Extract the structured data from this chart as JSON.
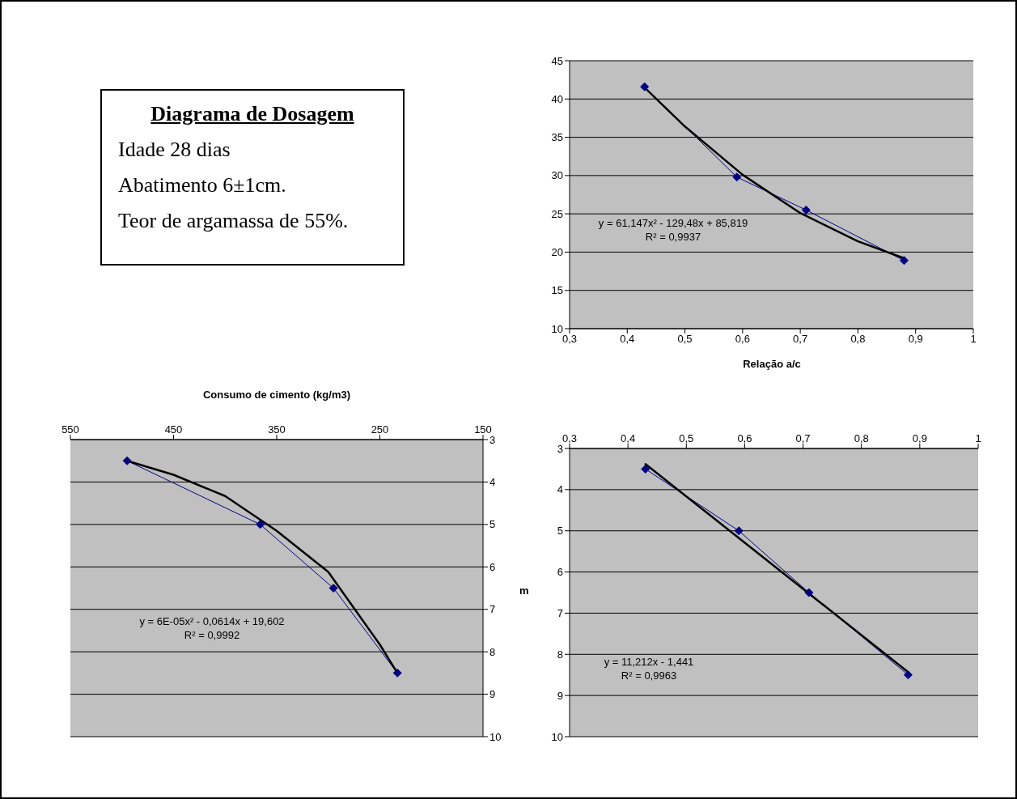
{
  "chart_data": [
    {
      "type": "other",
      "title": "Diagrama de Dosagem",
      "annotations": [
        "Idade 28 dias",
        "Abatimento 6±1cm.",
        "Teor de argamassa de 55%."
      ]
    },
    {
      "type": "line",
      "xlabel": "Relação a/c",
      "xlim": [
        0.3,
        1
      ],
      "xticks": [
        {
          "value": 0.3,
          "label": "0,3"
        },
        {
          "value": 0.4,
          "label": "0,4"
        },
        {
          "value": 0.5,
          "label": "0,5"
        },
        {
          "value": 0.6,
          "label": "0,6"
        },
        {
          "value": 0.7,
          "label": "0,7"
        },
        {
          "value": 0.8,
          "label": "0,8"
        },
        {
          "value": 0.9,
          "label": "0,9"
        },
        1
      ],
      "ylim": [
        10,
        45
      ],
      "yticks": [
        10,
        15,
        20,
        25,
        30,
        35,
        40,
        45
      ],
      "grid": "y",
      "marker": "diamond",
      "x": [
        0.43,
        0.59,
        0.71,
        0.88
      ],
      "series": [
        {
          "color": "#000080",
          "values": [
            41.6,
            29.8,
            25.5,
            18.9
          ]
        },
        {
          "type": "line",
          "marker": "none",
          "color": "#000000",
          "x": [
            0.43,
            0.5,
            0.6,
            0.7,
            0.8,
            0.88
          ],
          "values": [
            41.5,
            36.4,
            30.1,
            25.1,
            21.4,
            19.2
          ]
        }
      ],
      "annotations": [
        "y = 61,147x² - 129,48x + 85,819",
        "R² = 0,9937"
      ]
    },
    {
      "type": "line",
      "xlabel": "Consumo de cimento (kg/m3)",
      "xlim": [
        550,
        150
      ],
      "xticks": [
        550,
        450,
        350,
        250,
        150
      ],
      "ylim": [
        10,
        3
      ],
      "yticks": [
        3,
        4,
        5,
        6,
        7,
        8,
        9,
        10
      ],
      "grid": "y",
      "marker": "diamond",
      "x": [
        495,
        366,
        295,
        233
      ],
      "series": [
        {
          "color": "#000080",
          "values": [
            3.5,
            5,
            6.5,
            8.5
          ]
        },
        {
          "type": "line",
          "marker": "none",
          "color": "#000000",
          "x": [
            495,
            450,
            400,
            350,
            300,
            250,
            233
          ],
          "values": [
            3.5,
            3.83,
            4.33,
            5.15,
            6.12,
            7.83,
            8.5
          ]
        }
      ],
      "annotations": [
        "y = 6E-05x² - 0,0614x + 19,602",
        "R² = 0,9992"
      ]
    },
    {
      "type": "line",
      "ylabel": "m",
      "xlim": [
        0.3,
        1
      ],
      "xticks": [
        {
          "value": 0.3,
          "label": "0,3"
        },
        {
          "value": 0.4,
          "label": "0,4"
        },
        {
          "value": 0.5,
          "label": "0,5"
        },
        {
          "value": 0.6,
          "label": "0,6"
        },
        {
          "value": 0.7,
          "label": "0,7"
        },
        {
          "value": 0.8,
          "label": "0,8"
        },
        {
          "value": 0.9,
          "label": "0,9"
        },
        1
      ],
      "ylim": [
        10,
        3
      ],
      "yticks": [
        3,
        4,
        5,
        6,
        7,
        8,
        9,
        10
      ],
      "grid": "y",
      "marker": "diamond",
      "x": [
        0.43,
        0.59,
        0.71,
        0.88
      ],
      "series": [
        {
          "color": "#000080",
          "values": [
            3.5,
            5,
            6.5,
            8.5
          ]
        },
        {
          "type": "line",
          "marker": "none",
          "color": "#000000",
          "x": [
            0.43,
            0.88
          ],
          "values": [
            3.38,
            8.43
          ]
        }
      ],
      "annotations": [
        "y = 11,212x - 1,441",
        "R² = 0,9963"
      ]
    }
  ]
}
